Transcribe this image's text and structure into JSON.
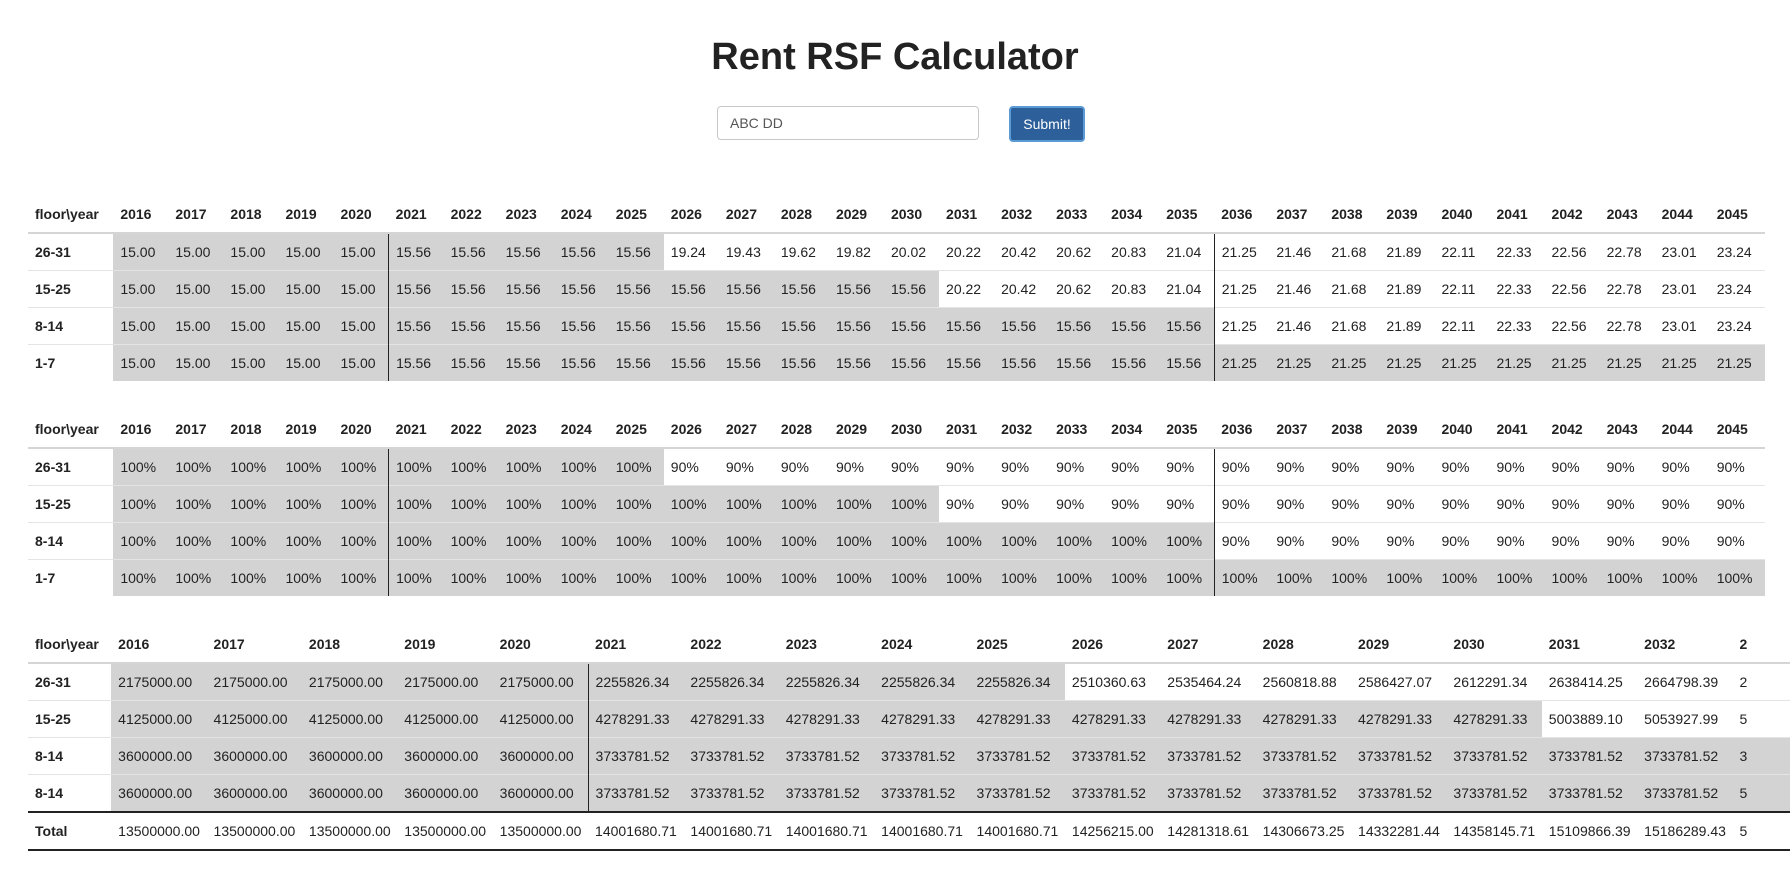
{
  "title": "Rent RSF Calculator",
  "form": {
    "input_value": "ABC DD",
    "submit_label": "Submit!"
  },
  "tables": [
    {
      "corner": "floor\\year",
      "years": [
        "2016",
        "2017",
        "2018",
        "2019",
        "2020",
        "2021",
        "2022",
        "2023",
        "2024",
        "2025",
        "2026",
        "2027",
        "2028",
        "2029",
        "2030",
        "2031",
        "2032",
        "2033",
        "2034",
        "2035",
        "2036",
        "2037",
        "2038",
        "2039",
        "2040",
        "2041",
        "2042",
        "2043",
        "2044",
        "2045"
      ],
      "rows": [
        {
          "label": "26-31",
          "shaded_until": 10,
          "values": [
            "15.00",
            "15.00",
            "15.00",
            "15.00",
            "15.00",
            "15.56",
            "15.56",
            "15.56",
            "15.56",
            "15.56",
            "19.24",
            "19.43",
            "19.62",
            "19.82",
            "20.02",
            "20.22",
            "20.42",
            "20.62",
            "20.83",
            "21.04",
            "21.25",
            "21.46",
            "21.68",
            "21.89",
            "22.11",
            "22.33",
            "22.56",
            "22.78",
            "23.01",
            "23.24"
          ]
        },
        {
          "label": "15-25",
          "shaded_until": 15,
          "values": [
            "15.00",
            "15.00",
            "15.00",
            "15.00",
            "15.00",
            "15.56",
            "15.56",
            "15.56",
            "15.56",
            "15.56",
            "15.56",
            "15.56",
            "15.56",
            "15.56",
            "15.56",
            "20.22",
            "20.42",
            "20.62",
            "20.83",
            "21.04",
            "21.25",
            "21.46",
            "21.68",
            "21.89",
            "22.11",
            "22.33",
            "22.56",
            "22.78",
            "23.01",
            "23.24"
          ]
        },
        {
          "label": "8-14",
          "shaded_until": 20,
          "values": [
            "15.00",
            "15.00",
            "15.00",
            "15.00",
            "15.00",
            "15.56",
            "15.56",
            "15.56",
            "15.56",
            "15.56",
            "15.56",
            "15.56",
            "15.56",
            "15.56",
            "15.56",
            "15.56",
            "15.56",
            "15.56",
            "15.56",
            "15.56",
            "21.25",
            "21.46",
            "21.68",
            "21.89",
            "22.11",
            "22.33",
            "22.56",
            "22.78",
            "23.01",
            "23.24"
          ]
        },
        {
          "label": "1-7",
          "shaded_until": 30,
          "values": [
            "15.00",
            "15.00",
            "15.00",
            "15.00",
            "15.00",
            "15.56",
            "15.56",
            "15.56",
            "15.56",
            "15.56",
            "15.56",
            "15.56",
            "15.56",
            "15.56",
            "15.56",
            "15.56",
            "15.56",
            "15.56",
            "15.56",
            "15.56",
            "21.25",
            "21.25",
            "21.25",
            "21.25",
            "21.25",
            "21.25",
            "21.25",
            "21.25",
            "21.25",
            "21.25"
          ]
        }
      ]
    },
    {
      "corner": "floor\\year",
      "years": [
        "2016",
        "2017",
        "2018",
        "2019",
        "2020",
        "2021",
        "2022",
        "2023",
        "2024",
        "2025",
        "2026",
        "2027",
        "2028",
        "2029",
        "2030",
        "2031",
        "2032",
        "2033",
        "2034",
        "2035",
        "2036",
        "2037",
        "2038",
        "2039",
        "2040",
        "2041",
        "2042",
        "2043",
        "2044",
        "2045"
      ],
      "rows": [
        {
          "label": "26-31",
          "shaded_until": 10,
          "values": [
            "100%",
            "100%",
            "100%",
            "100%",
            "100%",
            "100%",
            "100%",
            "100%",
            "100%",
            "100%",
            "90%",
            "90%",
            "90%",
            "90%",
            "90%",
            "90%",
            "90%",
            "90%",
            "90%",
            "90%",
            "90%",
            "90%",
            "90%",
            "90%",
            "90%",
            "90%",
            "90%",
            "90%",
            "90%",
            "90%"
          ]
        },
        {
          "label": "15-25",
          "shaded_until": 15,
          "values": [
            "100%",
            "100%",
            "100%",
            "100%",
            "100%",
            "100%",
            "100%",
            "100%",
            "100%",
            "100%",
            "100%",
            "100%",
            "100%",
            "100%",
            "100%",
            "90%",
            "90%",
            "90%",
            "90%",
            "90%",
            "90%",
            "90%",
            "90%",
            "90%",
            "90%",
            "90%",
            "90%",
            "90%",
            "90%",
            "90%"
          ]
        },
        {
          "label": "8-14",
          "shaded_until": 20,
          "values": [
            "100%",
            "100%",
            "100%",
            "100%",
            "100%",
            "100%",
            "100%",
            "100%",
            "100%",
            "100%",
            "100%",
            "100%",
            "100%",
            "100%",
            "100%",
            "100%",
            "100%",
            "100%",
            "100%",
            "100%",
            "90%",
            "90%",
            "90%",
            "90%",
            "90%",
            "90%",
            "90%",
            "90%",
            "90%",
            "90%"
          ]
        },
        {
          "label": "1-7",
          "shaded_until": 30,
          "values": [
            "100%",
            "100%",
            "100%",
            "100%",
            "100%",
            "100%",
            "100%",
            "100%",
            "100%",
            "100%",
            "100%",
            "100%",
            "100%",
            "100%",
            "100%",
            "100%",
            "100%",
            "100%",
            "100%",
            "100%",
            "100%",
            "100%",
            "100%",
            "100%",
            "100%",
            "100%",
            "100%",
            "100%",
            "100%",
            "100%"
          ]
        }
      ]
    },
    {
      "corner": "floor\\year",
      "years": [
        "2016",
        "2017",
        "2018",
        "2019",
        "2020",
        "2021",
        "2022",
        "2023",
        "2024",
        "2025",
        "2026",
        "2027",
        "2028",
        "2029",
        "2030",
        "2031",
        "2032",
        "2"
      ],
      "rows": [
        {
          "label": "26-31",
          "shaded_until": 10,
          "values": [
            "2175000.00",
            "2175000.00",
            "2175000.00",
            "2175000.00",
            "2175000.00",
            "2255826.34",
            "2255826.34",
            "2255826.34",
            "2255826.34",
            "2255826.34",
            "2510360.63",
            "2535464.24",
            "2560818.88",
            "2586427.07",
            "2612291.34",
            "2638414.25",
            "2664798.39",
            "2"
          ]
        },
        {
          "label": "15-25",
          "shaded_until": 15,
          "values": [
            "4125000.00",
            "4125000.00",
            "4125000.00",
            "4125000.00",
            "4125000.00",
            "4278291.33",
            "4278291.33",
            "4278291.33",
            "4278291.33",
            "4278291.33",
            "4278291.33",
            "4278291.33",
            "4278291.33",
            "4278291.33",
            "4278291.33",
            "5003889.10",
            "5053927.99",
            "5"
          ]
        },
        {
          "label": "8-14",
          "shaded_until": 18,
          "values": [
            "3600000.00",
            "3600000.00",
            "3600000.00",
            "3600000.00",
            "3600000.00",
            "3733781.52",
            "3733781.52",
            "3733781.52",
            "3733781.52",
            "3733781.52",
            "3733781.52",
            "3733781.52",
            "3733781.52",
            "3733781.52",
            "3733781.52",
            "3733781.52",
            "3733781.52",
            "3"
          ]
        },
        {
          "label": "8-14",
          "shaded_until": 18,
          "values": [
            "3600000.00",
            "3600000.00",
            "3600000.00",
            "3600000.00",
            "3600000.00",
            "3733781.52",
            "3733781.52",
            "3733781.52",
            "3733781.52",
            "3733781.52",
            "3733781.52",
            "3733781.52",
            "3733781.52",
            "3733781.52",
            "3733781.52",
            "3733781.52",
            "3733781.52",
            "5"
          ]
        }
      ],
      "total": {
        "label": "Total",
        "values": [
          "13500000.00",
          "13500000.00",
          "13500000.00",
          "13500000.00",
          "13500000.00",
          "14001680.71",
          "14001680.71",
          "14001680.71",
          "14001680.71",
          "14001680.71",
          "14256215.00",
          "14281318.61",
          "14306673.25",
          "14332281.44",
          "14358145.71",
          "15109866.39",
          "15186289.43",
          "5"
        ]
      }
    }
  ]
}
